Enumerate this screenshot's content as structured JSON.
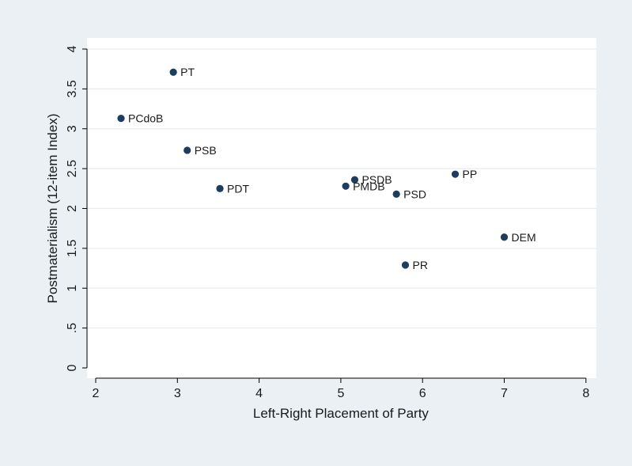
{
  "colors": {
    "background": "#eaf0f3",
    "plot_area": "#ffffff",
    "marker": "#1c3d5f",
    "axis": "#000000"
  },
  "chart_data": {
    "type": "scatter",
    "title": "",
    "xlabel": "Left-Right Placement of Party",
    "ylabel": "Postmaterialism (12-item Index)",
    "xlim": [
      1.9,
      8.1
    ],
    "ylim": [
      0,
      4
    ],
    "xticks": [
      2,
      3,
      4,
      5,
      6,
      7,
      8
    ],
    "xtick_labels": [
      "2",
      "3",
      "4",
      "5",
      "6",
      "7",
      "8"
    ],
    "yticks": [
      0,
      0.5,
      1,
      1.5,
      2,
      2.5,
      3,
      3.5,
      4
    ],
    "ytick_labels": [
      "0",
      ".5",
      "1",
      "1.5",
      "2",
      "2.5",
      "3",
      "3.5",
      "4"
    ],
    "grid": "horizontal",
    "points": [
      {
        "label": "PT",
        "x": 2.95,
        "y": 3.71
      },
      {
        "label": "PCdoB",
        "x": 2.31,
        "y": 3.13
      },
      {
        "label": "PSB",
        "x": 3.12,
        "y": 2.73
      },
      {
        "label": "PDT",
        "x": 3.52,
        "y": 2.25
      },
      {
        "label": "PSDB",
        "x": 5.17,
        "y": 2.36
      },
      {
        "label": "PMDB",
        "x": 5.06,
        "y": 2.28
      },
      {
        "label": "PSD",
        "x": 5.68,
        "y": 2.18
      },
      {
        "label": "PP",
        "x": 6.4,
        "y": 2.43
      },
      {
        "label": "DEM",
        "x": 7.0,
        "y": 1.64
      },
      {
        "label": "PR",
        "x": 5.79,
        "y": 1.29
      }
    ]
  }
}
